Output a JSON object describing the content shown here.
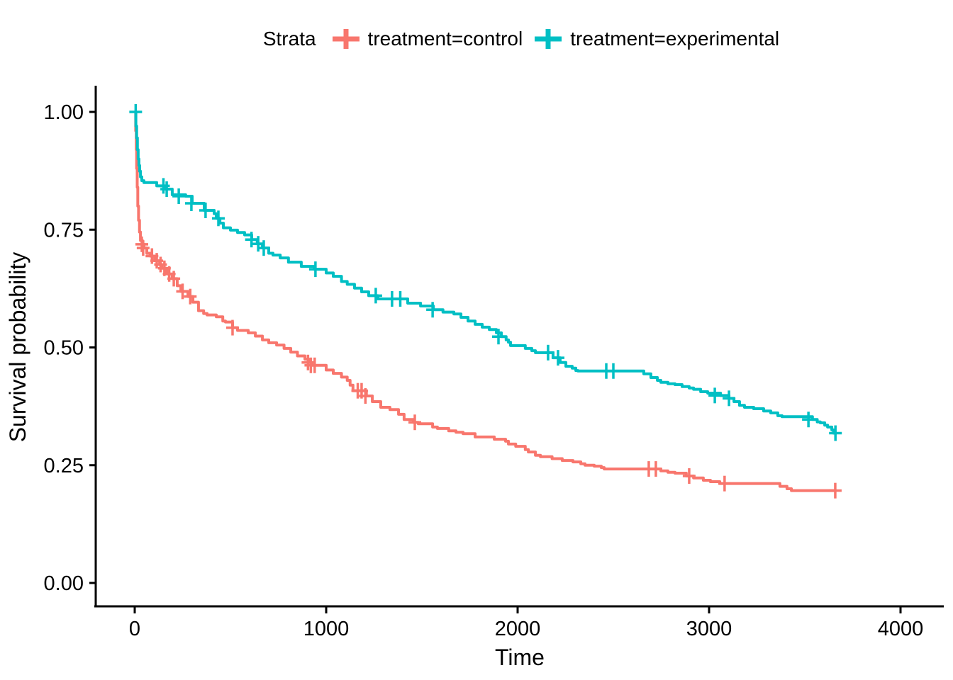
{
  "chart_data": {
    "type": "line",
    "subtype": "kaplan-meier-step",
    "title": "",
    "xlabel": "Time",
    "ylabel": "Survival probability",
    "legend_title": "Strata",
    "legend_position": "top",
    "grid": false,
    "xlim": [
      0,
      4000
    ],
    "ylim": [
      0.0,
      1.0
    ],
    "x_ticks": [
      {
        "value": 0,
        "label": "0"
      },
      {
        "value": 1000,
        "label": "1000"
      },
      {
        "value": 2000,
        "label": "2000"
      },
      {
        "value": 3000,
        "label": "3000"
      },
      {
        "value": 4000,
        "label": "4000"
      }
    ],
    "y_ticks": [
      {
        "value": 0.0,
        "label": "0.00"
      },
      {
        "value": 0.25,
        "label": "0.25"
      },
      {
        "value": 0.5,
        "label": "0.50"
      },
      {
        "value": 0.75,
        "label": "0.75"
      },
      {
        "value": 1.0,
        "label": "1.00"
      }
    ],
    "series": [
      {
        "name": "treatment=control",
        "color": "#F8766D",
        "points": [
          [
            0,
            1.0
          ],
          [
            5,
            0.96
          ],
          [
            8,
            0.92
          ],
          [
            10,
            0.88
          ],
          [
            13,
            0.84
          ],
          [
            16,
            0.8
          ],
          [
            20,
            0.77
          ],
          [
            25,
            0.745
          ],
          [
            30,
            0.727
          ],
          [
            40,
            0.719
          ],
          [
            48,
            0.711
          ],
          [
            63,
            0.7
          ],
          [
            81,
            0.694
          ],
          [
            104,
            0.684
          ],
          [
            130,
            0.676
          ],
          [
            141,
            0.668
          ],
          [
            167,
            0.656
          ],
          [
            196,
            0.646
          ],
          [
            222,
            0.631
          ],
          [
            241,
            0.619
          ],
          [
            278,
            0.608
          ],
          [
            304,
            0.596
          ],
          [
            333,
            0.578
          ],
          [
            360,
            0.572
          ],
          [
            378,
            0.569
          ],
          [
            426,
            0.565
          ],
          [
            460,
            0.556
          ],
          [
            474,
            0.554
          ],
          [
            511,
            0.542
          ],
          [
            537,
            0.536
          ],
          [
            593,
            0.531
          ],
          [
            630,
            0.524
          ],
          [
            667,
            0.516
          ],
          [
            700,
            0.51
          ],
          [
            741,
            0.505
          ],
          [
            780,
            0.498
          ],
          [
            815,
            0.49
          ],
          [
            850,
            0.482
          ],
          [
            889,
            0.475
          ],
          [
            910,
            0.468
          ],
          [
            925,
            0.462
          ],
          [
            1000,
            0.452
          ],
          [
            1037,
            0.445
          ],
          [
            1080,
            0.437
          ],
          [
            1110,
            0.43
          ],
          [
            1125,
            0.42
          ],
          [
            1140,
            0.408
          ],
          [
            1210,
            0.397
          ],
          [
            1241,
            0.385
          ],
          [
            1285,
            0.373
          ],
          [
            1333,
            0.368
          ],
          [
            1378,
            0.358
          ],
          [
            1407,
            0.347
          ],
          [
            1455,
            0.341
          ],
          [
            1481,
            0.338
          ],
          [
            1556,
            0.331
          ],
          [
            1581,
            0.328
          ],
          [
            1640,
            0.323
          ],
          [
            1678,
            0.32
          ],
          [
            1715,
            0.317
          ],
          [
            1778,
            0.31
          ],
          [
            1878,
            0.305
          ],
          [
            1937,
            0.301
          ],
          [
            1952,
            0.295
          ],
          [
            1990,
            0.29
          ],
          [
            2040,
            0.283
          ],
          [
            2056,
            0.278
          ],
          [
            2093,
            0.271
          ],
          [
            2119,
            0.268
          ],
          [
            2180,
            0.264
          ],
          [
            2233,
            0.26
          ],
          [
            2289,
            0.257
          ],
          [
            2330,
            0.253
          ],
          [
            2352,
            0.25
          ],
          [
            2400,
            0.248
          ],
          [
            2437,
            0.245
          ],
          [
            2452,
            0.242
          ],
          [
            2748,
            0.238
          ],
          [
            2785,
            0.235
          ],
          [
            2822,
            0.233
          ],
          [
            2881,
            0.227
          ],
          [
            2919,
            0.223
          ],
          [
            2970,
            0.218
          ],
          [
            3007,
            0.215
          ],
          [
            3056,
            0.211
          ],
          [
            3370,
            0.205
          ],
          [
            3407,
            0.2
          ],
          [
            3430,
            0.196
          ],
          [
            3659,
            0.196
          ]
        ],
        "censor_marks": [
          [
            37,
            0.719
          ],
          [
            44,
            0.711
          ],
          [
            90,
            0.694
          ],
          [
            115,
            0.684
          ],
          [
            135,
            0.676
          ],
          [
            155,
            0.668
          ],
          [
            180,
            0.656
          ],
          [
            204,
            0.646
          ],
          [
            250,
            0.619
          ],
          [
            290,
            0.608
          ],
          [
            511,
            0.542
          ],
          [
            905,
            0.468
          ],
          [
            920,
            0.462
          ],
          [
            940,
            0.462
          ],
          [
            1165,
            0.408
          ],
          [
            1185,
            0.408
          ],
          [
            1205,
            0.397
          ],
          [
            1463,
            0.341
          ],
          [
            2685,
            0.242
          ],
          [
            2722,
            0.242
          ],
          [
            2896,
            0.227
          ],
          [
            3081,
            0.211
          ],
          [
            3659,
            0.196
          ]
        ]
      },
      {
        "name": "treatment=experimental",
        "color": "#00BFC4",
        "points": [
          [
            0,
            1.0
          ],
          [
            6,
            0.97
          ],
          [
            10,
            0.945
          ],
          [
            14,
            0.92
          ],
          [
            18,
            0.9
          ],
          [
            22,
            0.886
          ],
          [
            26,
            0.874
          ],
          [
            30,
            0.862
          ],
          [
            37,
            0.854
          ],
          [
            48,
            0.85
          ],
          [
            115,
            0.843
          ],
          [
            160,
            0.836
          ],
          [
            196,
            0.824
          ],
          [
            266,
            0.821
          ],
          [
            300,
            0.806
          ],
          [
            363,
            0.791
          ],
          [
            415,
            0.784
          ],
          [
            426,
            0.774
          ],
          [
            445,
            0.764
          ],
          [
            463,
            0.754
          ],
          [
            500,
            0.749
          ],
          [
            537,
            0.744
          ],
          [
            574,
            0.739
          ],
          [
            611,
            0.729
          ],
          [
            640,
            0.72
          ],
          [
            667,
            0.711
          ],
          [
            700,
            0.7
          ],
          [
            722,
            0.696
          ],
          [
            760,
            0.69
          ],
          [
            803,
            0.681
          ],
          [
            870,
            0.672
          ],
          [
            937,
            0.666
          ],
          [
            1000,
            0.658
          ],
          [
            1037,
            0.651
          ],
          [
            1080,
            0.64
          ],
          [
            1110,
            0.634
          ],
          [
            1148,
            0.626
          ],
          [
            1185,
            0.618
          ],
          [
            1222,
            0.61
          ],
          [
            1270,
            0.603
          ],
          [
            1426,
            0.594
          ],
          [
            1493,
            0.588
          ],
          [
            1560,
            0.58
          ],
          [
            1610,
            0.575
          ],
          [
            1667,
            0.571
          ],
          [
            1704,
            0.564
          ],
          [
            1741,
            0.556
          ],
          [
            1778,
            0.549
          ],
          [
            1815,
            0.543
          ],
          [
            1852,
            0.538
          ],
          [
            1889,
            0.531
          ],
          [
            1915,
            0.523
          ],
          [
            1940,
            0.516
          ],
          [
            1952,
            0.511
          ],
          [
            1963,
            0.504
          ],
          [
            2040,
            0.498
          ],
          [
            2074,
            0.493
          ],
          [
            2093,
            0.489
          ],
          [
            2185,
            0.478
          ],
          [
            2222,
            0.468
          ],
          [
            2252,
            0.46
          ],
          [
            2285,
            0.456
          ],
          [
            2304,
            0.451
          ],
          [
            2315,
            0.45
          ],
          [
            2659,
            0.444
          ],
          [
            2696,
            0.436
          ],
          [
            2730,
            0.43
          ],
          [
            2748,
            0.426
          ],
          [
            2785,
            0.423
          ],
          [
            2822,
            0.421
          ],
          [
            2859,
            0.417
          ],
          [
            2896,
            0.414
          ],
          [
            2919,
            0.411
          ],
          [
            2956,
            0.406
          ],
          [
            2993,
            0.403
          ],
          [
            3060,
            0.398
          ],
          [
            3104,
            0.392
          ],
          [
            3130,
            0.385
          ],
          [
            3159,
            0.377
          ],
          [
            3185,
            0.373
          ],
          [
            3233,
            0.37
          ],
          [
            3285,
            0.365
          ],
          [
            3322,
            0.361
          ],
          [
            3359,
            0.355
          ],
          [
            3381,
            0.353
          ],
          [
            3540,
            0.347
          ],
          [
            3565,
            0.342
          ],
          [
            3581,
            0.34
          ],
          [
            3604,
            0.335
          ],
          [
            3619,
            0.331
          ],
          [
            3641,
            0.325
          ],
          [
            3650,
            0.318
          ],
          [
            3667,
            0.318
          ]
        ],
        "censor_marks": [
          [
            5,
            1.0
          ],
          [
            150,
            0.843
          ],
          [
            167,
            0.836
          ],
          [
            230,
            0.821
          ],
          [
            296,
            0.806
          ],
          [
            370,
            0.791
          ],
          [
            437,
            0.774
          ],
          [
            610,
            0.729
          ],
          [
            645,
            0.72
          ],
          [
            674,
            0.711
          ],
          [
            944,
            0.666
          ],
          [
            1259,
            0.61
          ],
          [
            1344,
            0.603
          ],
          [
            1387,
            0.603
          ],
          [
            1556,
            0.58
          ],
          [
            1900,
            0.523
          ],
          [
            2159,
            0.489
          ],
          [
            2211,
            0.478
          ],
          [
            2463,
            0.45
          ],
          [
            2500,
            0.45
          ],
          [
            3030,
            0.398
          ],
          [
            3104,
            0.392
          ],
          [
            3519,
            0.347
          ],
          [
            3660,
            0.318
          ]
        ]
      }
    ]
  }
}
